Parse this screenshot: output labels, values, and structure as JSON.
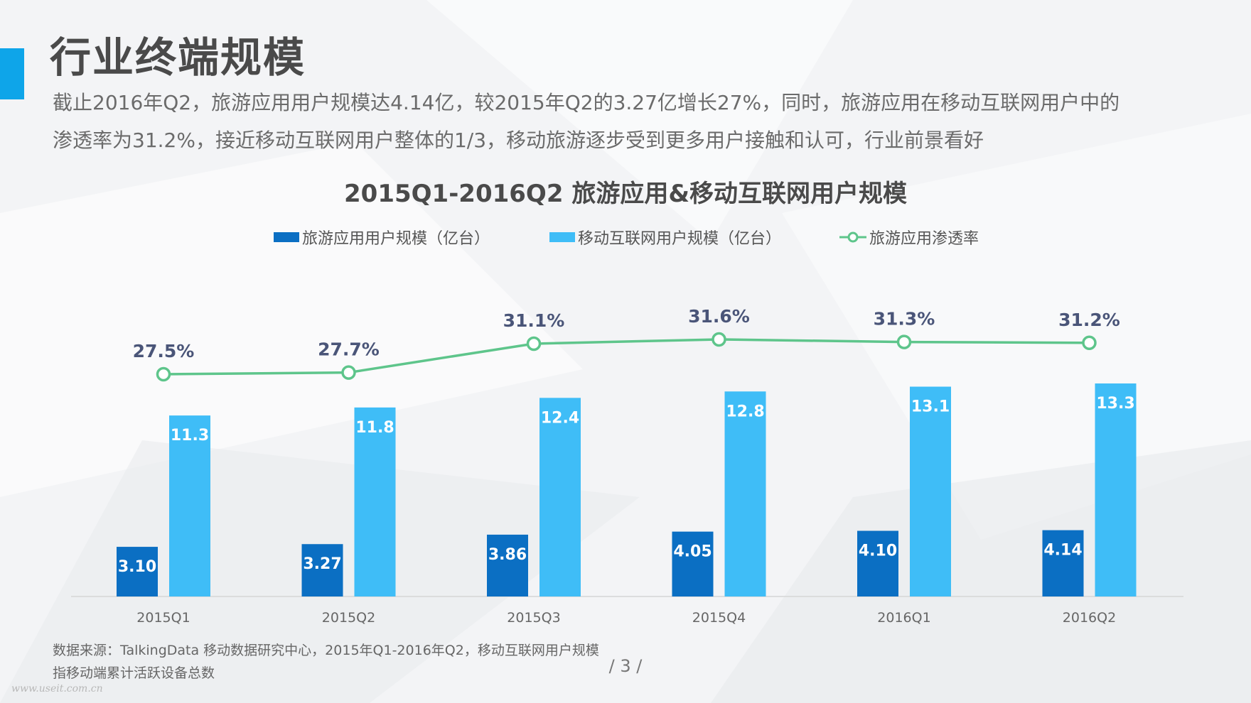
{
  "slide": {
    "title": "行业终端规模",
    "description": [
      "截止2016年Q2，旅游应用用户规模达4.14亿，较2015年Q2的3.27亿增长27%，同时，旅游应用在移动互联网用户中的",
      "渗透率为31.2%，接近移动互联网用户整体的1/3，移动旅游逐步受到更多用户接触和认可，行业前景看好"
    ],
    "source": [
      "数据来源：TalkingData 移动数据研究中心，2015年Q1-2016年Q2，移动互联网用户规模",
      "指移动端累计活跃设备总数"
    ],
    "page_number": "/ 3 /",
    "watermark": "www.useit.com.cn"
  },
  "colors": {
    "accent": "#0ea5e9",
    "travel_bar": "#0b6fc3",
    "mobile_bar": "#3fbdf7",
    "penetration_line": "#5ec58b"
  },
  "chart_data": {
    "type": "bar",
    "title": "2015Q1-2016Q2 旅游应用&移动互联网用户规模",
    "categories": [
      "2015Q1",
      "2015Q2",
      "2015Q3",
      "2015Q4",
      "2016Q1",
      "2016Q2"
    ],
    "series": [
      {
        "name": "旅游应用用户规模（亿台）",
        "type": "bar",
        "values": [
          3.1,
          3.27,
          3.86,
          4.05,
          4.1,
          4.14
        ],
        "labels": [
          "3.10",
          "3.27",
          "3.86",
          "4.05",
          "4.10",
          "4.14"
        ]
      },
      {
        "name": "移动互联网用户规模（亿台）",
        "type": "bar",
        "values": [
          11.3,
          11.8,
          12.4,
          12.8,
          13.1,
          13.3
        ],
        "labels": [
          "11.3",
          "11.8",
          "12.4",
          "12.8",
          "13.1",
          "13.3"
        ]
      },
      {
        "name": "旅游应用渗透率",
        "type": "line",
        "values": [
          27.5,
          27.7,
          31.1,
          31.6,
          31.3,
          31.2
        ],
        "labels": [
          "27.5%",
          "27.7%",
          "31.1%",
          "31.6%",
          "31.3%",
          "31.2%"
        ]
      }
    ],
    "bar_ylim": [
      0,
      15
    ],
    "line_ylim": [
      0,
      35
    ],
    "legend_position": "top-center",
    "grid": false
  }
}
